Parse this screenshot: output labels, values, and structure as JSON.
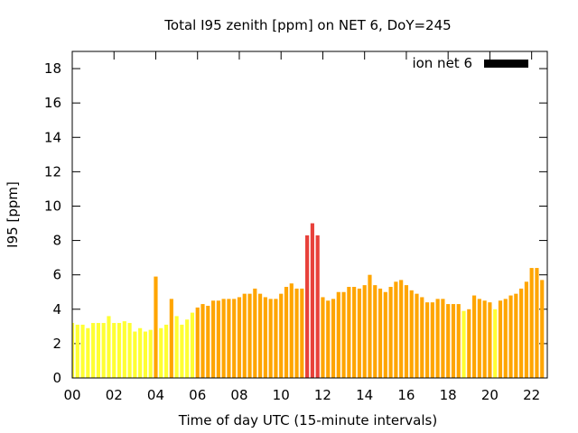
{
  "chart_data": {
    "type": "bar",
    "title": "Total I95 zenith [ppm] on NET 6, DoY=245",
    "xlabel": "Time of day UTC (15-minute intervals)",
    "ylabel": "I95 [ppm]",
    "xlim": [
      0,
      22.75
    ],
    "ylim": [
      0,
      19
    ],
    "x_ticks": [
      "00",
      "02",
      "04",
      "06",
      "08",
      "10",
      "12",
      "14",
      "16",
      "18",
      "20",
      "22"
    ],
    "x_tick_values": [
      0,
      2,
      4,
      6,
      8,
      10,
      12,
      14,
      16,
      18,
      20,
      22
    ],
    "y_ticks": [
      0,
      2,
      4,
      6,
      8,
      10,
      12,
      14,
      16,
      18
    ],
    "bar_interval_hours": 0.25,
    "legend": {
      "label": "ion net 6",
      "position": "top-right",
      "color": "#000000"
    },
    "colors": {
      "low": "#ffff33",
      "medium": "#ffa500",
      "high": "#e8413a"
    },
    "values": [
      3.2,
      3.1,
      3.1,
      2.9,
      3.2,
      3.2,
      3.2,
      3.6,
      3.2,
      3.2,
      3.3,
      3.2,
      2.7,
      2.9,
      2.7,
      2.8,
      5.9,
      2.9,
      3.1,
      4.6,
      3.6,
      3.1,
      3.4,
      3.8,
      4.1,
      4.3,
      4.2,
      4.5,
      4.5,
      4.6,
      4.6,
      4.6,
      4.7,
      4.9,
      4.9,
      5.2,
      4.9,
      4.7,
      4.6,
      4.6,
      4.9,
      5.3,
      5.5,
      5.2,
      5.2,
      8.3,
      9.0,
      8.3,
      4.7,
      4.5,
      4.6,
      5.0,
      5.0,
      5.3,
      5.3,
      5.2,
      5.4,
      6.0,
      5.4,
      5.2,
      5.0,
      5.3,
      5.6,
      5.7,
      5.4,
      5.1,
      4.9,
      4.7,
      4.4,
      4.4,
      4.6,
      4.6,
      4.3,
      4.3,
      4.3,
      3.9,
      4.0,
      4.8,
      4.6,
      4.5,
      4.4,
      4.0,
      4.5,
      4.6,
      4.8,
      4.9,
      5.2,
      5.6,
      6.4,
      6.4,
      5.7
    ],
    "levels": [
      "low",
      "low",
      "low",
      "low",
      "low",
      "low",
      "low",
      "low",
      "low",
      "low",
      "low",
      "low",
      "low",
      "low",
      "low",
      "low",
      "medium",
      "low",
      "low",
      "medium",
      "low",
      "low",
      "low",
      "low",
      "medium",
      "medium",
      "medium",
      "medium",
      "medium",
      "medium",
      "medium",
      "medium",
      "medium",
      "medium",
      "medium",
      "medium",
      "medium",
      "medium",
      "medium",
      "medium",
      "medium",
      "medium",
      "medium",
      "medium",
      "medium",
      "high",
      "high",
      "high",
      "medium",
      "medium",
      "medium",
      "medium",
      "medium",
      "medium",
      "medium",
      "medium",
      "medium",
      "medium",
      "medium",
      "medium",
      "medium",
      "medium",
      "medium",
      "medium",
      "medium",
      "medium",
      "medium",
      "medium",
      "medium",
      "medium",
      "medium",
      "medium",
      "medium",
      "medium",
      "medium",
      "low",
      "medium",
      "medium",
      "medium",
      "medium",
      "medium",
      "low",
      "medium",
      "medium",
      "medium",
      "medium",
      "medium",
      "medium",
      "medium",
      "medium",
      "medium"
    ]
  }
}
